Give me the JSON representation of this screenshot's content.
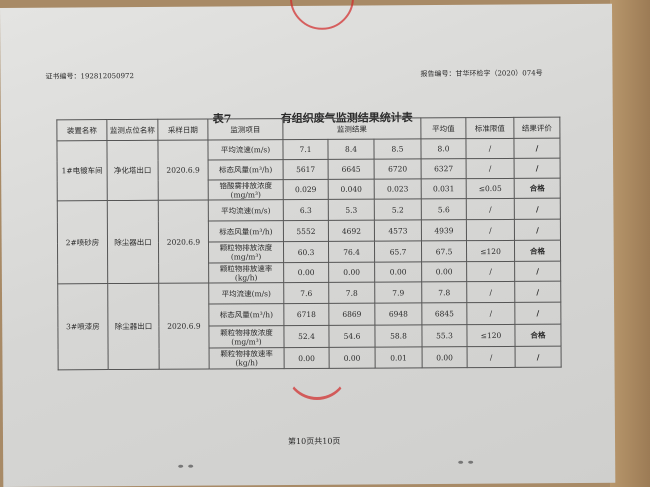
{
  "cert_no": "证书编号：192812050972",
  "report_no": "报告编号：甘华环检字（2020）074号",
  "table_no": "表7",
  "table_title": "有组织废气监测结果统计表",
  "headers": [
    "装置名称",
    "监测点位名称",
    "采样日期",
    "监测项目",
    "监测结果",
    "平均值",
    "标准限值",
    "结果评价"
  ],
  "groups": [
    {
      "device": "1#电镀车间",
      "point": "净化塔出口",
      "date": "2020.6.9",
      "rows": [
        {
          "item": "平均流速(m/s)",
          "r": [
            "7.1",
            "8.4",
            "8.5"
          ],
          "avg": "8.0",
          "limit": "/",
          "eval": "/"
        },
        {
          "item": "标态风量(m³/h)",
          "r": [
            "5617",
            "6645",
            "6720"
          ],
          "avg": "6327",
          "limit": "/",
          "eval": "/"
        },
        {
          "item": "铬酸雾排放浓度(mg/m³)",
          "r": [
            "0.029",
            "0.040",
            "0.023"
          ],
          "avg": "0.031",
          "limit": "≤0.05",
          "eval": "合格"
        }
      ]
    },
    {
      "device": "2#喷砂房",
      "point": "除尘器出口",
      "date": "2020.6.9",
      "rows": [
        {
          "item": "平均流速(m/s)",
          "r": [
            "6.3",
            "5.3",
            "5.2"
          ],
          "avg": "5.6",
          "limit": "/",
          "eval": "/"
        },
        {
          "item": "标态风量(m³/h)",
          "r": [
            "5552",
            "4692",
            "4573"
          ],
          "avg": "4939",
          "limit": "/",
          "eval": "/"
        },
        {
          "item": "颗粒物排放浓度(mg/m³)",
          "r": [
            "60.3",
            "76.4",
            "65.7"
          ],
          "avg": "67.5",
          "limit": "≤120",
          "eval": "合格"
        },
        {
          "item": "颗粒物排放速率(kg/h)",
          "r": [
            "0.00",
            "0.00",
            "0.00"
          ],
          "avg": "0.00",
          "limit": "/",
          "eval": "/"
        }
      ]
    },
    {
      "device": "3#喷漆房",
      "point": "除尘器出口",
      "date": "2020.6.9",
      "rows": [
        {
          "item": "平均流速(m/s)",
          "r": [
            "7.6",
            "7.8",
            "7.9"
          ],
          "avg": "7.8",
          "limit": "/",
          "eval": "/"
        },
        {
          "item": "标态风量(m³/h)",
          "r": [
            "6718",
            "6869",
            "6948"
          ],
          "avg": "6845",
          "limit": "/",
          "eval": "/"
        },
        {
          "item": "颗粒物排放浓度(mg/m³)",
          "r": [
            "52.4",
            "54.6",
            "58.8"
          ],
          "avg": "55.3",
          "limit": "≤120",
          "eval": "合格"
        },
        {
          "item": "颗粒物排放速率(kg/h)",
          "r": [
            "0.00",
            "0.00",
            "0.01"
          ],
          "avg": "0.00",
          "limit": "/",
          "eval": "/"
        }
      ]
    }
  ],
  "footer": "第10页共10页",
  "colors": {
    "stamp": "#d22828"
  }
}
